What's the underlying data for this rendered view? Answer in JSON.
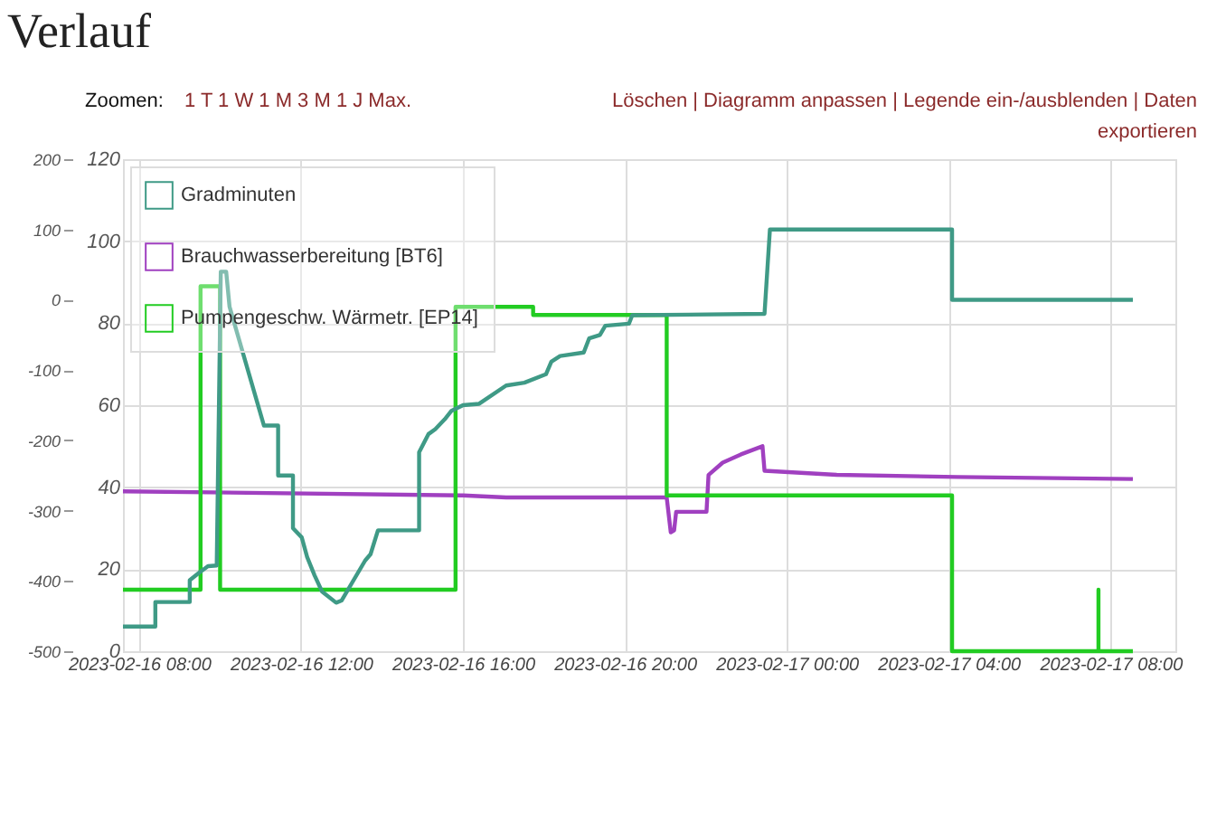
{
  "chart_data": {
    "type": "line",
    "title": "Verlauf",
    "annotations": [
      "Zoomen: 1 T 1 W 1 M 3 M 1 J Max.",
      "Löschen | Diagramm anpassen | Legende ein-/ausblenden | Daten exportieren"
    ],
    "xlim": [
      "2023-02-16T07:36",
      "2023-02-17T09:36"
    ],
    "xticks": [
      {
        "value": "2023-02-16T08:00",
        "label": "2023-02-16 08:00"
      },
      {
        "value": "2023-02-16T12:00",
        "label": "2023-02-16 12:00"
      },
      {
        "value": "2023-02-16T16:00",
        "label": "2023-02-16 16:00"
      },
      {
        "value": "2023-02-16T20:00",
        "label": "2023-02-16 20:00"
      },
      {
        "value": "2023-02-17T00:00",
        "label": "2023-02-17 00:00"
      },
      {
        "value": "2023-02-17T04:00",
        "label": "2023-02-17 04:00"
      },
      {
        "value": "2023-02-17T08:00",
        "label": "2023-02-17 08:00"
      }
    ],
    "ylim": [
      0,
      120
    ],
    "yticks": [
      0,
      20,
      40,
      60,
      80,
      100,
      120
    ],
    "y2lim": [
      -500,
      200
    ],
    "y2ticks": [
      -500,
      -400,
      -300,
      -200,
      -100,
      0,
      100,
      200
    ],
    "grid": true,
    "legend": "top left",
    "marker": "none",
    "line_style": "solid",
    "series": [
      {
        "name": "Gradminuten",
        "color": "#3f9a86",
        "axis": "y2",
        "x": [
          "2023-02-16T07:36",
          "2023-02-16T08:24",
          "2023-02-16T08:24",
          "2023-02-16T09:15",
          "2023-02-16T09:15",
          "2023-02-16T09:28",
          "2023-02-16T09:42",
          "2023-02-16T09:55",
          "2023-02-16T10:01",
          "2023-02-16T10:09",
          "2023-02-16T10:14",
          "2023-02-16T11:05",
          "2023-02-16T11:26",
          "2023-02-16T11:26",
          "2023-02-16T11:48",
          "2023-02-16T11:48",
          "2023-02-16T12:01",
          "2023-02-16T12:09",
          "2023-02-16T12:20",
          "2023-02-16T12:31",
          "2023-02-16T12:52",
          "2023-02-16T13:00",
          "2023-02-16T13:35",
          "2023-02-16T13:43",
          "2023-02-16T13:54",
          "2023-02-16T14:55",
          "2023-02-16T14:55",
          "2023-02-16T15:09",
          "2023-02-16T15:19",
          "2023-02-16T15:33",
          "2023-02-16T15:43",
          "2023-02-16T16:00",
          "2023-02-16T16:24",
          "2023-02-16T17:04",
          "2023-02-16T17:31",
          "2023-02-16T18:03",
          "2023-02-16T18:11",
          "2023-02-16T18:24",
          "2023-02-16T18:59",
          "2023-02-16T19:07",
          "2023-02-16T19:23",
          "2023-02-16T19:31",
          "2023-02-16T20:06",
          "2023-02-16T20:11",
          "2023-02-16T23:27",
          "2023-02-16T23:35",
          "2023-02-17T04:05",
          "2023-02-17T04:05",
          "2023-02-17T08:33"
        ],
        "values": [
          -465,
          -465,
          -430,
          -430,
          -399,
          -389,
          -379,
          -378,
          40,
          40,
          -10,
          -179,
          -179,
          -250,
          -250,
          -325,
          -338,
          -366,
          -392,
          -415,
          -431,
          -428,
          -371,
          -362,
          -328,
          -328,
          -217,
          -191,
          -184,
          -170,
          -158,
          -150,
          -148,
          -122,
          -118,
          -106,
          -88,
          -80,
          -75,
          -55,
          -50,
          -37,
          -34,
          -22,
          -20,
          100,
          100,
          0,
          0
        ]
      },
      {
        "name": "Brauchwasserbereitung [BT6]",
        "color": "#a040c0",
        "x": [
          "2023-02-16T07:36",
          "2023-02-16T16:00",
          "2023-02-16T17:04",
          "2023-02-16T21:02",
          "2023-02-16T21:08",
          "2023-02-16T21:13",
          "2023-02-16T21:16",
          "2023-02-16T22:01",
          "2023-02-16T22:04",
          "2023-02-16T22:25",
          "2023-02-16T22:52",
          "2023-02-16T23:24",
          "2023-02-16T23:27",
          "2023-02-17T01:14",
          "2023-02-17T04:13",
          "2023-02-17T08:33"
        ],
        "values": [
          39,
          38,
          37.5,
          37.5,
          29,
          29.5,
          34,
          34,
          43,
          46,
          48,
          50,
          44,
          43,
          42.5,
          42
        ]
      },
      {
        "name": "Pumpengeschw. Wärmetr. [EP14]",
        "color": "#22cc22",
        "x": [
          "2023-02-16T07:36",
          "2023-02-16T09:31",
          "2023-02-16T09:31",
          "2023-02-16T10:00",
          "2023-02-16T10:00",
          "2023-02-16T15:49",
          "2023-02-16T15:49",
          "2023-02-16T17:44",
          "2023-02-16T17:44",
          "2023-02-16T21:02",
          "2023-02-16T21:02",
          "2023-02-17T04:05",
          "2023-02-17T04:05",
          "2023-02-17T07:42",
          "2023-02-17T07:42",
          "2023-02-17T07:42",
          "2023-02-17T08:33"
        ],
        "values": [
          15,
          15,
          89,
          89,
          15,
          15,
          84,
          84,
          82,
          82,
          38,
          38,
          0,
          0,
          15,
          0,
          0
        ]
      }
    ]
  }
}
